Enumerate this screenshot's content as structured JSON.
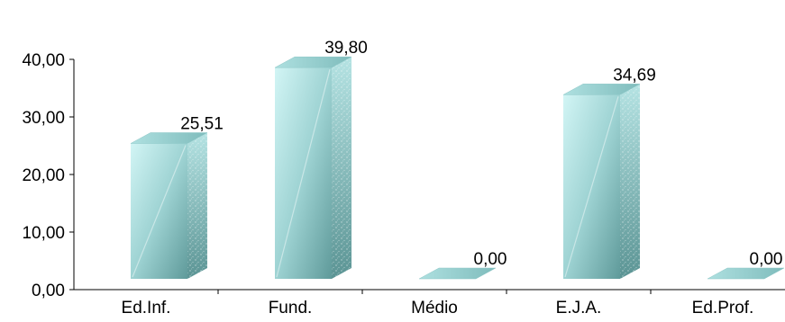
{
  "chart_data": {
    "type": "bar",
    "categories": [
      "Ed.Inf.",
      "Fund.",
      "Médio",
      "E.J.A.",
      "Ed.Prof."
    ],
    "values": [
      25.51,
      39.8,
      0.0,
      34.69,
      0.0
    ],
    "data_labels": [
      "25,51",
      "39,80",
      "0,00",
      "34,69",
      "0,00"
    ],
    "y_ticks": [
      "0,00",
      "10,00",
      "20,00",
      "30,00",
      "40,00"
    ],
    "y_tick_values": [
      0,
      10,
      20,
      30,
      40
    ],
    "ylim": [
      0,
      40
    ],
    "title": "",
    "xlabel": "",
    "ylabel": "",
    "grid": false,
    "style": "3d-bar",
    "colors": {
      "front_light": "#c9f1f1",
      "front_dark": "#5f9e9e",
      "side_light": "#b8e6e6",
      "side_dark": "#4d8585",
      "top": "#9fd6d6",
      "axis": "#000000"
    }
  }
}
